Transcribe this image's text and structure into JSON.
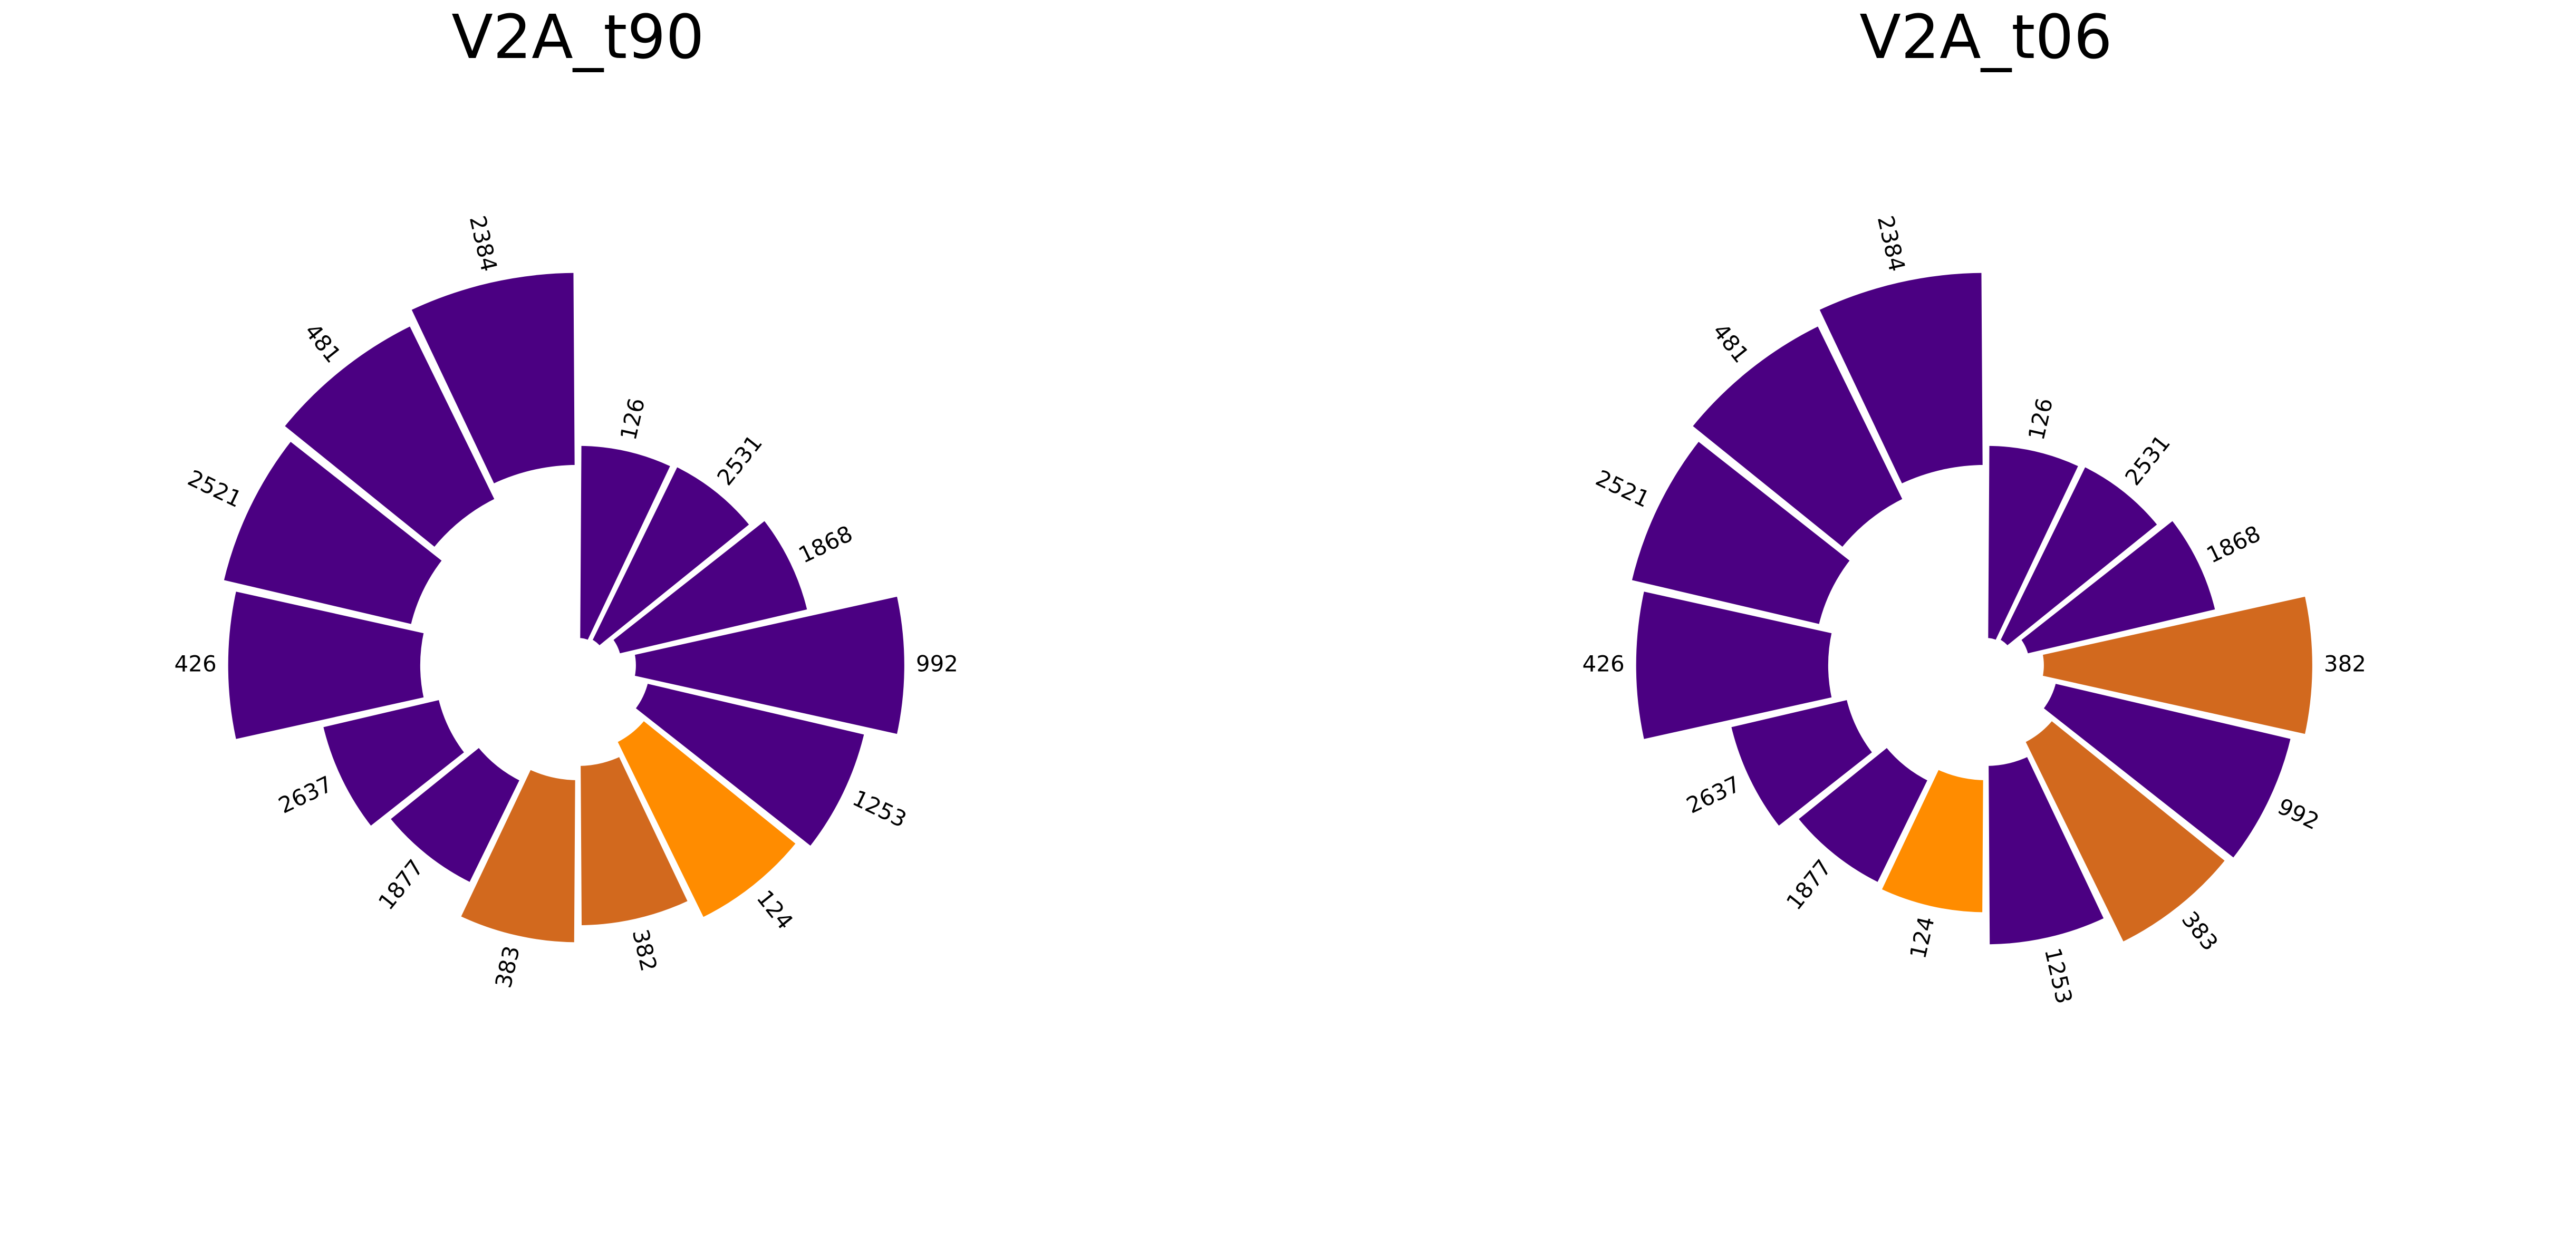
{
  "colors": {
    "default": "#4B0082",
    "highlight_dark": "#D2691E",
    "highlight_bright": "#FF8C00",
    "separator": "#FFFFFF"
  },
  "chart_data": [
    {
      "type": "circular-bar",
      "title": "V2A_t90",
      "bars": [
        {
          "label": "126",
          "value": 0.72,
          "color": "#4B0082"
        },
        {
          "label": "2531",
          "value": 0.72,
          "color": "#4B0082"
        },
        {
          "label": "1868",
          "value": 0.72,
          "color": "#4B0082"
        },
        {
          "label": "992",
          "value": 1.0,
          "color": "#4B0082"
        },
        {
          "label": "1253",
          "value": 0.83,
          "color": "#4B0082"
        },
        {
          "label": "124",
          "value": 0.73,
          "color": "#FF8C00"
        },
        {
          "label": "382",
          "value": 0.6,
          "color": "#D2691E"
        },
        {
          "label": "383",
          "value": 0.61,
          "color": "#D2691E"
        },
        {
          "label": "1877",
          "value": 0.43,
          "color": "#4B0082"
        },
        {
          "label": "2637",
          "value": 0.45,
          "color": "#4B0082"
        },
        {
          "label": "426",
          "value": 0.72,
          "color": "#4B0082"
        },
        {
          "label": "2521",
          "value": 0.72,
          "color": "#4B0082"
        },
        {
          "label": "481",
          "value": 0.72,
          "color": "#4B0082"
        },
        {
          "label": "2384",
          "value": 0.72,
          "color": "#4B0082"
        }
      ]
    },
    {
      "type": "circular-bar",
      "title": "V2A_t06",
      "bars": [
        {
          "label": "126",
          "value": 0.72,
          "color": "#4B0082"
        },
        {
          "label": "2531",
          "value": 0.72,
          "color": "#4B0082"
        },
        {
          "label": "1868",
          "value": 0.72,
          "color": "#4B0082"
        },
        {
          "label": "382",
          "value": 1.0,
          "color": "#D2691E"
        },
        {
          "label": "992",
          "value": 0.9,
          "color": "#4B0082"
        },
        {
          "label": "383",
          "value": 0.83,
          "color": "#D2691E"
        },
        {
          "label": "1253",
          "value": 0.67,
          "color": "#4B0082"
        },
        {
          "label": "124",
          "value": 0.5,
          "color": "#FF8C00"
        },
        {
          "label": "1877",
          "value": 0.43,
          "color": "#4B0082"
        },
        {
          "label": "2637",
          "value": 0.45,
          "color": "#4B0082"
        },
        {
          "label": "426",
          "value": 0.72,
          "color": "#4B0082"
        },
        {
          "label": "2521",
          "value": 0.72,
          "color": "#4B0082"
        },
        {
          "label": "481",
          "value": 0.72,
          "color": "#4B0082"
        },
        {
          "label": "2384",
          "value": 0.72,
          "color": "#4B0082"
        }
      ]
    }
  ]
}
